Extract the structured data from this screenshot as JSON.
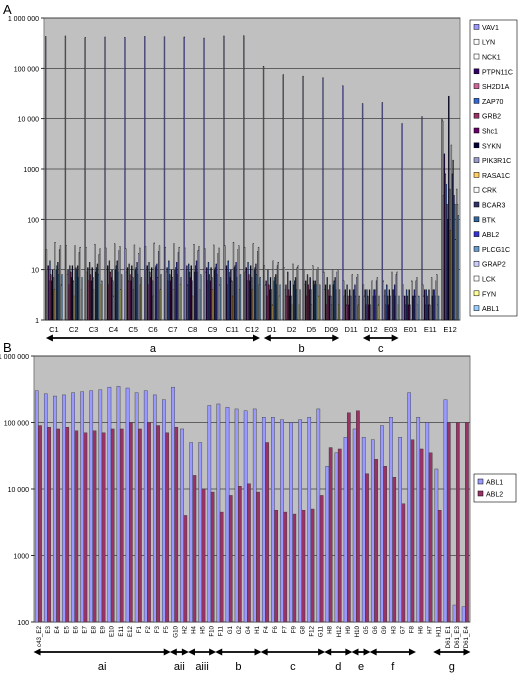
{
  "chart_data": [
    {
      "panel": "A",
      "type": "bar",
      "log_y": true,
      "ylim": [
        1,
        1000000
      ],
      "ytick_labels": [
        "1",
        "10",
        "100",
        "1000",
        "10 000",
        "100 000",
        "1 000 000"
      ],
      "categories": [
        "C1",
        "C2",
        "C3",
        "C4",
        "C5",
        "C6",
        "C7",
        "C8",
        "C9",
        "C11",
        "C12",
        "D1",
        "D2",
        "D5",
        "D09",
        "D11",
        "D12",
        "E03",
        "E01",
        "E11",
        "E12"
      ],
      "legend": [
        "VAV1",
        "LYN",
        "NCK1",
        "PTPN11C",
        "SH2D1A",
        "ZAP70",
        "GRB2",
        "Shc1",
        "SYKN",
        "PIK3R1C",
        "RASA1C",
        "CRK",
        "BCAR3",
        "BTK",
        "ABL2",
        "PLCG1C",
        "GRAP2",
        "LCK",
        "FYN",
        "ABL1"
      ],
      "legend_colors": [
        "#9999ff",
        "#ffffff",
        "#ffffff",
        "#330066",
        "#cc6699",
        "#3366cc",
        "#993366",
        "#660066",
        "#000033",
        "#9999cc",
        "#ffcc66",
        "#ffffff",
        "#333366",
        "#336699",
        "#3333cc",
        "#6699cc",
        "#ccccff",
        "#ffffff",
        "#ffff99",
        "#99ccff"
      ],
      "series_names": [
        "VAV1",
        "LYN",
        "NCK1",
        "PTPN11C",
        "SH2D1A",
        "ZAP70",
        "GRB2",
        "Shc1",
        "SYKN",
        "PIK3R1C",
        "RASA1C",
        "CRK",
        "BCAR3",
        "BTK",
        "ABL2",
        "PLCG1C",
        "GRAP2",
        "LCK",
        "FYN",
        "ABL1"
      ],
      "series_values": [
        [
          430000,
          25,
          10,
          12,
          6,
          15,
          8,
          6,
          10,
          7,
          4,
          35,
          10,
          12,
          14,
          8,
          25,
          30,
          5,
          8
        ],
        [
          440000,
          30,
          8,
          10,
          5,
          12,
          9,
          7,
          12,
          6,
          3,
          30,
          11,
          10,
          12,
          7,
          22,
          28,
          4,
          7
        ],
        [
          410000,
          28,
          9,
          11,
          6,
          14,
          8,
          6,
          11,
          7,
          4,
          32,
          9,
          11,
          13,
          8,
          20,
          26,
          5,
          6
        ],
        [
          420000,
          27,
          10,
          12,
          5,
          15,
          9,
          7,
          10,
          6,
          3,
          33,
          10,
          12,
          15,
          9,
          24,
          29,
          4,
          8
        ],
        [
          415000,
          26,
          9,
          11,
          6,
          13,
          8,
          6,
          12,
          7,
          4,
          31,
          10,
          11,
          14,
          8,
          21,
          27,
          5,
          7
        ],
        [
          430000,
          29,
          10,
          12,
          5,
          14,
          9,
          7,
          11,
          6,
          3,
          34,
          11,
          12,
          13,
          7,
          23,
          30,
          4,
          8
        ],
        [
          425000,
          28,
          9,
          11,
          6,
          15,
          8,
          6,
          10,
          7,
          4,
          33,
          10,
          11,
          14,
          8,
          22,
          28,
          5,
          7
        ],
        [
          420000,
          27,
          10,
          12,
          5,
          13,
          9,
          7,
          12,
          6,
          3,
          32,
          9,
          12,
          15,
          9,
          24,
          29,
          4,
          8
        ],
        [
          400000,
          26,
          9,
          11,
          6,
          14,
          8,
          6,
          11,
          7,
          4,
          31,
          10,
          11,
          13,
          8,
          21,
          27,
          5,
          7
        ],
        [
          440000,
          30,
          10,
          12,
          5,
          15,
          9,
          7,
          10,
          6,
          3,
          35,
          11,
          12,
          14,
          7,
          25,
          30,
          4,
          8
        ],
        [
          445000,
          28,
          9,
          11,
          6,
          14,
          8,
          6,
          12,
          7,
          4,
          33,
          10,
          11,
          13,
          8,
          23,
          28,
          5,
          7
        ],
        [
          110000,
          12,
          5,
          6,
          3,
          10,
          5,
          4,
          7,
          4,
          2,
          15,
          6,
          7,
          8,
          5,
          12,
          14,
          3,
          5
        ],
        [
          75000,
          11,
          4,
          5,
          3,
          9,
          4,
          3,
          6,
          3,
          2,
          13,
          5,
          6,
          7,
          4,
          11,
          12,
          2,
          4
        ],
        [
          70000,
          10,
          5,
          6,
          3,
          8,
          5,
          4,
          7,
          4,
          2,
          12,
          6,
          5,
          6,
          5,
          10,
          11,
          3,
          5
        ],
        [
          65000,
          9,
          4,
          5,
          2,
          7,
          4,
          3,
          5,
          3,
          2,
          10,
          5,
          6,
          7,
          4,
          9,
          10,
          2,
          4
        ],
        [
          45000,
          6,
          3,
          4,
          2,
          5,
          3,
          2,
          4,
          3,
          1,
          8,
          4,
          4,
          5,
          3,
          7,
          8,
          2,
          3
        ],
        [
          20000,
          5,
          3,
          4,
          2,
          4,
          3,
          2,
          4,
          2,
          1,
          6,
          3,
          4,
          4,
          3,
          6,
          7,
          2,
          3
        ],
        [
          21000,
          6,
          3,
          4,
          2,
          5,
          3,
          2,
          4,
          3,
          1,
          9,
          4,
          4,
          5,
          3,
          8,
          9,
          2,
          3
        ],
        [
          8000,
          5,
          3,
          3,
          2,
          4,
          3,
          2,
          4,
          2,
          1,
          6,
          3,
          3,
          4,
          3,
          6,
          7,
          2,
          3
        ],
        [
          11000,
          5,
          3,
          4,
          2,
          4,
          3,
          2,
          4,
          2,
          1,
          7,
          3,
          4,
          4,
          3,
          6,
          8,
          2,
          3
        ],
        [
          10000,
          9000,
          300,
          2000,
          800,
          500,
          200,
          100,
          28000,
          400,
          60,
          3000,
          800,
          1500,
          300,
          200,
          40,
          400,
          200,
          120
        ]
      ],
      "group_labels": [
        "a",
        "b",
        "c"
      ]
    },
    {
      "panel": "B",
      "type": "bar",
      "log_y": true,
      "ylim": [
        100,
        1000000
      ],
      "ytick_labels": [
        "100",
        "1000",
        "10 000",
        "100 000",
        "1 000 000"
      ],
      "categories": [
        "c43_E2",
        "E3",
        "E4",
        "E5",
        "E6",
        "E7",
        "E8",
        "E9",
        "E10",
        "E11",
        "E12",
        "F1",
        "F2",
        "F3",
        "F5",
        "G10",
        "H2",
        "H4",
        "H5",
        "F10",
        "F11",
        "G1",
        "G2",
        "G4",
        "H1",
        "F4",
        "F6",
        "F7",
        "F9",
        "G8",
        "F12",
        "G11",
        "H8",
        "H12",
        "H9",
        "H10",
        "G5",
        "G6",
        "G9",
        "H3",
        "G7",
        "F8",
        "H6",
        "H7",
        "H11",
        "D61_E1",
        "D61_E3",
        "D61_E4"
      ],
      "series": [
        {
          "name": "ABL1",
          "values": [
            300000,
            270000,
            250000,
            260000,
            280000,
            290000,
            300000,
            310000,
            340000,
            350000,
            330000,
            280000,
            300000,
            260000,
            220000,
            340000,
            80000,
            50000,
            50000,
            180000,
            190000,
            170000,
            160000,
            150000,
            160000,
            120000,
            120000,
            110000,
            100000,
            110000,
            120000,
            160000,
            22000,
            35000,
            60000,
            80000,
            60000,
            55000,
            90000,
            120000,
            60000,
            280000,
            120000,
            100000,
            20000,
            220000,
            180,
            170
          ]
        },
        {
          "name": "ABL2",
          "values": [
            90000,
            85000,
            80000,
            85000,
            75000,
            70000,
            75000,
            70000,
            80000,
            80000,
            100000,
            80000,
            100000,
            90000,
            70000,
            85000,
            4000,
            16000,
            10000,
            9000,
            4500,
            8000,
            11000,
            12000,
            9000,
            50000,
            4800,
            4500,
            4200,
            4800,
            5000,
            8000,
            42000,
            40000,
            140000,
            150000,
            17000,
            28000,
            22000,
            15000,
            6000,
            55000,
            40000,
            35000,
            4800,
            100000,
            100000,
            100000
          ]
        }
      ],
      "legend": [
        "ABL1",
        "ABL2"
      ],
      "legend_colors": [
        "#9999ff",
        "#993366"
      ],
      "group_labels": [
        "ai",
        "aii",
        "aiii",
        "b",
        "c",
        "d",
        "e",
        "f",
        "g"
      ]
    }
  ],
  "panel_labels": {
    "a": "A",
    "b": "B"
  }
}
